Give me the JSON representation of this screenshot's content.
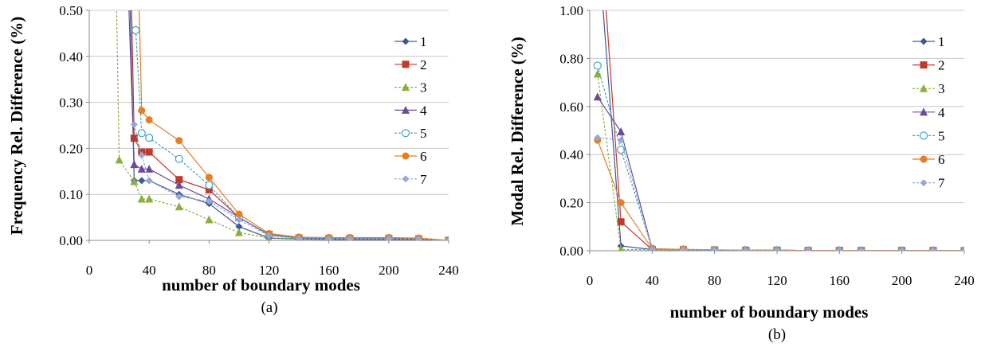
{
  "chart_data": [
    {
      "type": "line",
      "caption": "(a)",
      "xlabel": "number of boundary modes",
      "ylabel": "Frequency Rel. Difference (%)",
      "xlim": [
        0,
        240
      ],
      "ylim": [
        0,
        0.5
      ],
      "xticks": [
        0,
        40,
        80,
        120,
        160,
        200,
        240
      ],
      "yticks": [
        0.0,
        0.1,
        0.2,
        0.3,
        0.4,
        0.5
      ],
      "xtick_labels": [
        "0",
        "40",
        "80",
        "120",
        "160",
        "200",
        "240"
      ],
      "ytick_labels": [
        "0.00",
        "0.10",
        "0.20",
        "0.30",
        "0.40",
        "0.50"
      ],
      "grid": "horizontal",
      "legend": "right",
      "series": [
        {
          "name": "1",
          "color": "#3B5998",
          "marker": "diamond",
          "dashed": false,
          "x": [
            27,
            30,
            35,
            40,
            60,
            80,
            100,
            120,
            140,
            160,
            174,
            200,
            220,
            240
          ],
          "y": [
            0.55,
            0.13,
            0.13,
            0.13,
            0.1,
            0.08,
            0.03,
            0.005,
            0.003,
            0.002,
            0.002,
            0.002,
            0.002,
            0.0
          ]
        },
        {
          "name": "2",
          "color": "#C0392B",
          "marker": "square",
          "dashed": false,
          "x": [
            28,
            30,
            35,
            40,
            60,
            80,
            100,
            120,
            140,
            160,
            174,
            200,
            220,
            240
          ],
          "y": [
            0.55,
            0.222,
            0.192,
            0.192,
            0.132,
            0.11,
            0.05,
            0.013,
            0.005,
            0.004,
            0.004,
            0.004,
            0.003,
            0.0
          ]
        },
        {
          "name": "3",
          "color": "#8AAF3C",
          "marker": "triangle",
          "dashed": true,
          "x": [
            18,
            20,
            30,
            35,
            40,
            60,
            80,
            100,
            120,
            140,
            160,
            174,
            200,
            220,
            240
          ],
          "y": [
            0.55,
            0.175,
            0.128,
            0.09,
            0.09,
            0.073,
            0.045,
            0.017,
            0.005,
            0.004,
            0.004,
            0.004,
            0.004,
            0.003,
            0.0
          ]
        },
        {
          "name": "4",
          "color": "#6B4C9A",
          "marker": "triangle",
          "dashed": false,
          "x": [
            26,
            30,
            35,
            40,
            60,
            80,
            100,
            120,
            140,
            160,
            174,
            200,
            220,
            240
          ],
          "y": [
            0.55,
            0.165,
            0.155,
            0.155,
            0.12,
            0.09,
            0.05,
            0.012,
            0.005,
            0.004,
            0.004,
            0.004,
            0.003,
            0.0
          ]
        },
        {
          "name": "5",
          "color": "#3BA3C3",
          "marker": "circle-open",
          "dashed": true,
          "x": [
            31,
            35,
            40,
            60,
            80,
            100,
            120,
            140,
            160,
            174,
            200,
            220,
            240
          ],
          "y": [
            0.457,
            0.233,
            0.223,
            0.177,
            0.12,
            0.05,
            0.013,
            0.006,
            0.005,
            0.005,
            0.005,
            0.004,
            0.0
          ]
        },
        {
          "name": "6",
          "color": "#E67E22",
          "marker": "circle",
          "dashed": false,
          "x": [
            33,
            35,
            40,
            60,
            80,
            100,
            120,
            140,
            160,
            174,
            200,
            220,
            240
          ],
          "y": [
            0.55,
            0.282,
            0.262,
            0.217,
            0.137,
            0.057,
            0.015,
            0.007,
            0.006,
            0.006,
            0.006,
            0.005,
            0.0
          ]
        },
        {
          "name": "7",
          "color": "#95A9D6",
          "marker": "diamond",
          "dashed": true,
          "x": [
            30,
            35,
            40,
            60,
            80,
            100,
            120,
            140,
            160,
            174,
            200,
            220,
            240
          ],
          "y": [
            0.252,
            0.185,
            0.13,
            0.095,
            0.085,
            0.045,
            0.01,
            0.004,
            0.003,
            0.003,
            0.003,
            0.003,
            0.0
          ]
        }
      ]
    },
    {
      "type": "line",
      "caption": "(b)",
      "xlabel": "number of boundary modes",
      "ylabel": "Modal Rel. Difference (%)",
      "xlim": [
        0,
        240
      ],
      "ylim": [
        0,
        1.0
      ],
      "xticks": [
        0,
        40,
        80,
        120,
        160,
        200,
        240
      ],
      "yticks": [
        0.0,
        0.2,
        0.4,
        0.6,
        0.8,
        1.0
      ],
      "xtick_labels": [
        "0",
        "40",
        "80",
        "120",
        "160",
        "200",
        "240"
      ],
      "ytick_labels": [
        "0.00",
        "0.20",
        "0.40",
        "0.60",
        "0.80",
        "1.00"
      ],
      "grid": "horizontal",
      "legend": "right",
      "series": [
        {
          "name": "1",
          "color": "#3B5998",
          "marker": "diamond",
          "dashed": false,
          "x": [
            8,
            20,
            40,
            60,
            80,
            100,
            120,
            140,
            160,
            174,
            200,
            220,
            240
          ],
          "y": [
            1.05,
            0.02,
            0.005,
            0.004,
            0.003,
            0.002,
            0.002,
            0.001,
            0.001,
            0.001,
            0.001,
            0.001,
            0.0
          ]
        },
        {
          "name": "2",
          "color": "#C0392B",
          "marker": "square",
          "dashed": false,
          "x": [
            10,
            20,
            40,
            60,
            80,
            100,
            120,
            140,
            160,
            174,
            200,
            220,
            240
          ],
          "y": [
            1.05,
            0.12,
            0.005,
            0.004,
            0.003,
            0.002,
            0.002,
            0.001,
            0.001,
            0.001,
            0.001,
            0.001,
            0.0
          ]
        },
        {
          "name": "3",
          "color": "#8AAF3C",
          "marker": "triangle",
          "dashed": true,
          "x": [
            5,
            20,
            40,
            60,
            80,
            100,
            120,
            140,
            160,
            174,
            200,
            220,
            240
          ],
          "y": [
            0.735,
            0.005,
            0.005,
            0.004,
            0.003,
            0.002,
            0.002,
            0.001,
            0.001,
            0.001,
            0.001,
            0.001,
            0.0
          ]
        },
        {
          "name": "4",
          "color": "#6B4C9A",
          "marker": "triangle",
          "dashed": false,
          "x": [
            5,
            20,
            40,
            60,
            80,
            100,
            120,
            140,
            160,
            174,
            200,
            220,
            240
          ],
          "y": [
            0.64,
            0.495,
            0.008,
            0.005,
            0.003,
            0.002,
            0.002,
            0.001,
            0.001,
            0.001,
            0.001,
            0.001,
            0.0
          ]
        },
        {
          "name": "5",
          "color": "#3BA3C3",
          "marker": "circle-open",
          "dashed": true,
          "x": [
            5,
            20,
            40,
            60,
            80,
            100,
            120,
            140,
            160,
            174,
            200,
            220,
            240
          ],
          "y": [
            0.77,
            0.42,
            0.008,
            0.005,
            0.003,
            0.002,
            0.002,
            0.001,
            0.001,
            0.001,
            0.001,
            0.001,
            0.0
          ]
        },
        {
          "name": "6",
          "color": "#E67E22",
          "marker": "circle",
          "dashed": false,
          "x": [
            5,
            20,
            40,
            60,
            80,
            100,
            120,
            140,
            160,
            174,
            200,
            220,
            240
          ],
          "y": [
            0.46,
            0.2,
            0.008,
            0.006,
            0.004,
            0.002,
            0.002,
            0.001,
            0.001,
            0.001,
            0.001,
            0.001,
            0.0
          ]
        },
        {
          "name": "7",
          "color": "#95A9D6",
          "marker": "diamond",
          "dashed": true,
          "x": [
            5,
            20,
            40,
            60,
            80,
            100,
            120,
            140,
            160,
            174,
            200,
            220,
            240
          ],
          "y": [
            0.47,
            0.46,
            0.005,
            0.004,
            0.003,
            0.002,
            0.002,
            0.001,
            0.001,
            0.001,
            0.001,
            0.001,
            0.0
          ]
        }
      ]
    }
  ]
}
